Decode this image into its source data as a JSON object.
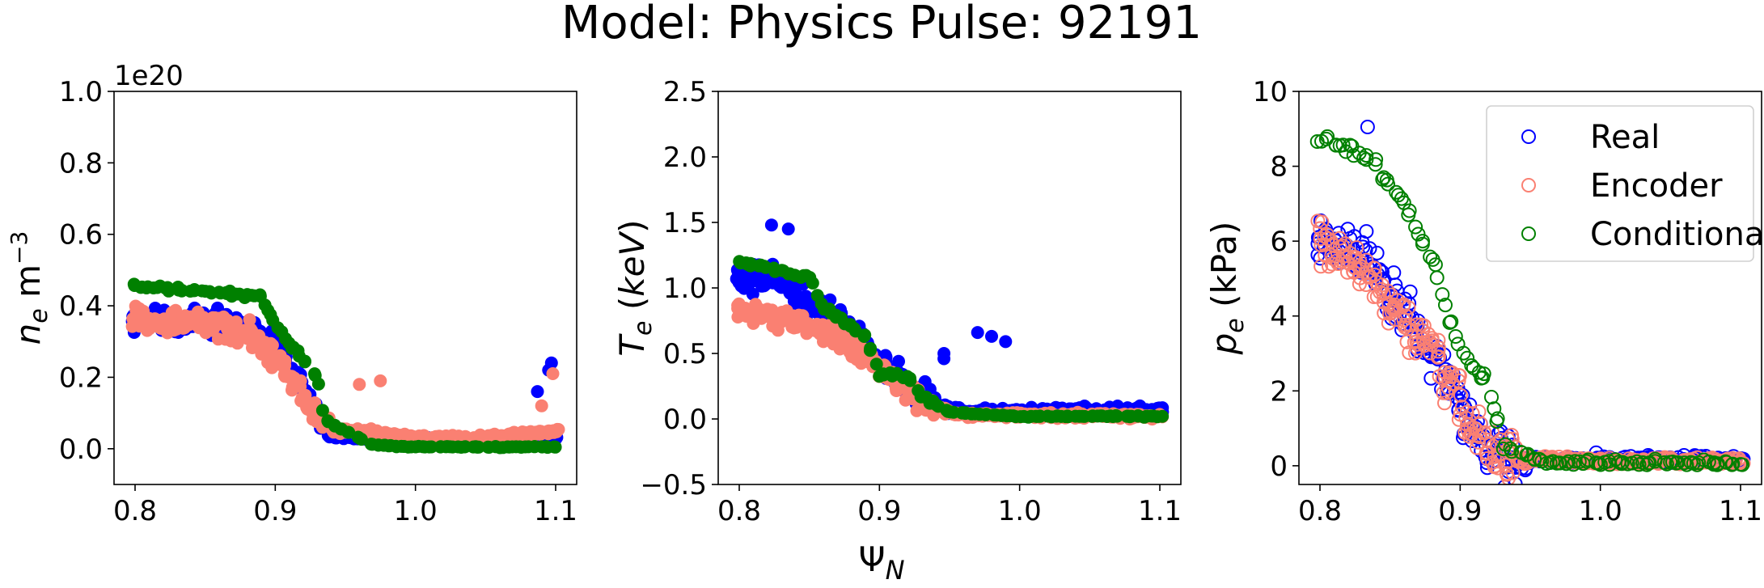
{
  "figure": {
    "title": "Model: Physics  Pulse: 92191",
    "shared_xlabel": "Ψ_N",
    "series": [
      {
        "name": "Real",
        "color": "#0000ff"
      },
      {
        "name": "Encoder",
        "color": "#fa8072"
      },
      {
        "name": "Conditional",
        "color": "#008000"
      }
    ]
  },
  "chart_data": [
    {
      "type": "scatter",
      "marker": "filled-circle",
      "ylabel": "n_e  m^-3",
      "offset_text": "1e20",
      "xlim": [
        0.785,
        1.115
      ],
      "ylim": [
        -0.1,
        1.0
      ],
      "xticks": [
        0.8,
        0.9,
        1.0,
        1.1
      ],
      "yticks": [
        0.0,
        0.2,
        0.4,
        0.6,
        0.8,
        1.0
      ],
      "xtick_labels": [
        "0.8",
        "0.9",
        "1.0",
        "1.1"
      ],
      "ytick_labels": [
        "0.0",
        "0.2",
        "0.4",
        "0.6",
        "0.8",
        "1.0"
      ],
      "series": [
        {
          "name": "Real",
          "color": "#0000ff",
          "profile": {
            "x": [
              0.8,
              0.85,
              0.88,
              0.9,
              0.92,
              0.94,
              0.96,
              1.0,
              1.05,
              1.1
            ],
            "y": [
              0.36,
              0.36,
              0.34,
              0.28,
              0.16,
              0.04,
              0.03,
              0.02,
              0.02,
              0.03
            ]
          },
          "spread": 0.05,
          "extra": [
            [
              1.097,
              0.24
            ],
            [
              1.095,
              0.22
            ],
            [
              1.087,
              0.16
            ]
          ]
        },
        {
          "name": "Encoder",
          "color": "#fa8072",
          "profile": {
            "x": [
              0.8,
              0.85,
              0.88,
              0.9,
              0.92,
              0.94,
              0.96,
              1.0,
              1.05,
              1.1
            ],
            "y": [
              0.36,
              0.35,
              0.32,
              0.26,
              0.14,
              0.05,
              0.05,
              0.03,
              0.03,
              0.05
            ]
          },
          "spread": 0.05,
          "extra": [
            [
              1.098,
              0.21
            ],
            [
              1.09,
              0.12
            ],
            [
              0.975,
              0.19
            ],
            [
              0.96,
              0.18
            ]
          ]
        },
        {
          "name": "Conditional",
          "color": "#008000",
          "profile": {
            "x": [
              0.8,
              0.89,
              0.9,
              0.93,
              0.935,
              0.95,
              0.97,
              1.0,
              1.1
            ],
            "y": [
              0.455,
              0.425,
              0.345,
              0.2,
              0.08,
              0.05,
              0.01,
              0.005,
              0.005
            ]
          },
          "spread": 0.01,
          "extra": []
        }
      ]
    },
    {
      "type": "scatter",
      "marker": "filled-circle",
      "ylabel": "T_e  (keV)",
      "xlim": [
        0.785,
        1.115
      ],
      "ylim": [
        -0.5,
        2.5
      ],
      "xticks": [
        0.8,
        0.9,
        1.0,
        1.1
      ],
      "yticks": [
        -0.5,
        0.0,
        0.5,
        1.0,
        1.5,
        2.0,
        2.5
      ],
      "xtick_labels": [
        "0.8",
        "0.9",
        "1.0",
        "1.1"
      ],
      "ytick_labels": [
        "−0.5",
        "0.0",
        "0.5",
        "1.0",
        "1.5",
        "2.0",
        "2.5"
      ],
      "series": [
        {
          "name": "Real",
          "color": "#0000ff",
          "profile": {
            "x": [
              0.8,
              0.82,
              0.85,
              0.88,
              0.9,
              0.92,
              0.94,
              0.96,
              1.0,
              1.1
            ],
            "y": [
              1.05,
              1.1,
              0.85,
              0.7,
              0.45,
              0.25,
              0.1,
              0.05,
              0.06,
              0.06
            ]
          },
          "spread": 0.18,
          "extra": [
            [
              0.823,
              1.48
            ],
            [
              0.835,
              1.45
            ],
            [
              0.97,
              0.66
            ],
            [
              0.98,
              0.63
            ],
            [
              0.99,
              0.59
            ],
            [
              0.946,
              0.5
            ],
            [
              0.946,
              0.46
            ]
          ]
        },
        {
          "name": "Encoder",
          "color": "#fa8072",
          "profile": {
            "x": [
              0.8,
              0.85,
              0.88,
              0.9,
              0.92,
              0.94,
              0.96,
              1.0,
              1.1
            ],
            "y": [
              0.85,
              0.72,
              0.55,
              0.4,
              0.2,
              0.08,
              0.03,
              0.03,
              0.02
            ]
          },
          "spread": 0.12,
          "extra": []
        },
        {
          "name": "Conditional",
          "color": "#008000",
          "profile": {
            "x": [
              0.8,
              0.85,
              0.86,
              0.89,
              0.9,
              0.92,
              0.93,
              0.95,
              1.0,
              1.1
            ],
            "y": [
              1.2,
              1.08,
              0.85,
              0.63,
              0.35,
              0.33,
              0.17,
              0.05,
              0.02,
              0.02
            ]
          },
          "spread": 0.03,
          "extra": []
        }
      ]
    },
    {
      "type": "scatter",
      "marker": "open-circle",
      "ylabel": "p_e  (kPa)",
      "xlim": [
        0.785,
        1.115
      ],
      "ylim": [
        -0.5,
        10.0
      ],
      "xticks": [
        0.8,
        0.9,
        1.0,
        1.1
      ],
      "yticks": [
        0,
        2,
        4,
        6,
        8,
        10
      ],
      "xtick_labels": [
        "0.8",
        "0.9",
        "1.0",
        "1.1"
      ],
      "ytick_labels": [
        "0",
        "2",
        "4",
        "6",
        "8",
        "10"
      ],
      "legend": {
        "position": "top-right",
        "entries": [
          "Real",
          "Encoder",
          "Conditional"
        ]
      },
      "series": [
        {
          "name": "Real",
          "color": "#0000ff",
          "profile": {
            "x": [
              0.8,
              0.82,
              0.85,
              0.88,
              0.9,
              0.92,
              0.94,
              1.0,
              1.1
            ],
            "y": [
              6.0,
              6.0,
              4.6,
              3.2,
              1.5,
              0.4,
              0.1,
              0.08,
              0.08
            ]
          },
          "spread": 1.0,
          "extra": [
            [
              0.834,
              9.05
            ],
            [
              0.997,
              0.35
            ],
            [
              1.095,
              0.25
            ]
          ]
        },
        {
          "name": "Encoder",
          "color": "#fa8072",
          "profile": {
            "x": [
              0.8,
              0.82,
              0.85,
              0.88,
              0.9,
              0.92,
              0.94,
              1.0,
              1.1
            ],
            "y": [
              6.0,
              5.6,
              4.3,
              3.0,
              1.6,
              0.5,
              0.15,
              0.05,
              0.05
            ]
          },
          "spread": 0.9,
          "extra": []
        },
        {
          "name": "Conditional",
          "color": "#008000",
          "profile": {
            "x": [
              0.8,
              0.82,
              0.84,
              0.86,
              0.88,
              0.9,
              0.92,
              0.93,
              0.96,
              1.0,
              1.1
            ],
            "y": [
              8.7,
              8.5,
              8.0,
              7.0,
              5.5,
              3.0,
              2.2,
              0.6,
              0.05,
              0.02,
              0.02
            ]
          },
          "spread": 0.25,
          "extra": []
        }
      ]
    }
  ]
}
